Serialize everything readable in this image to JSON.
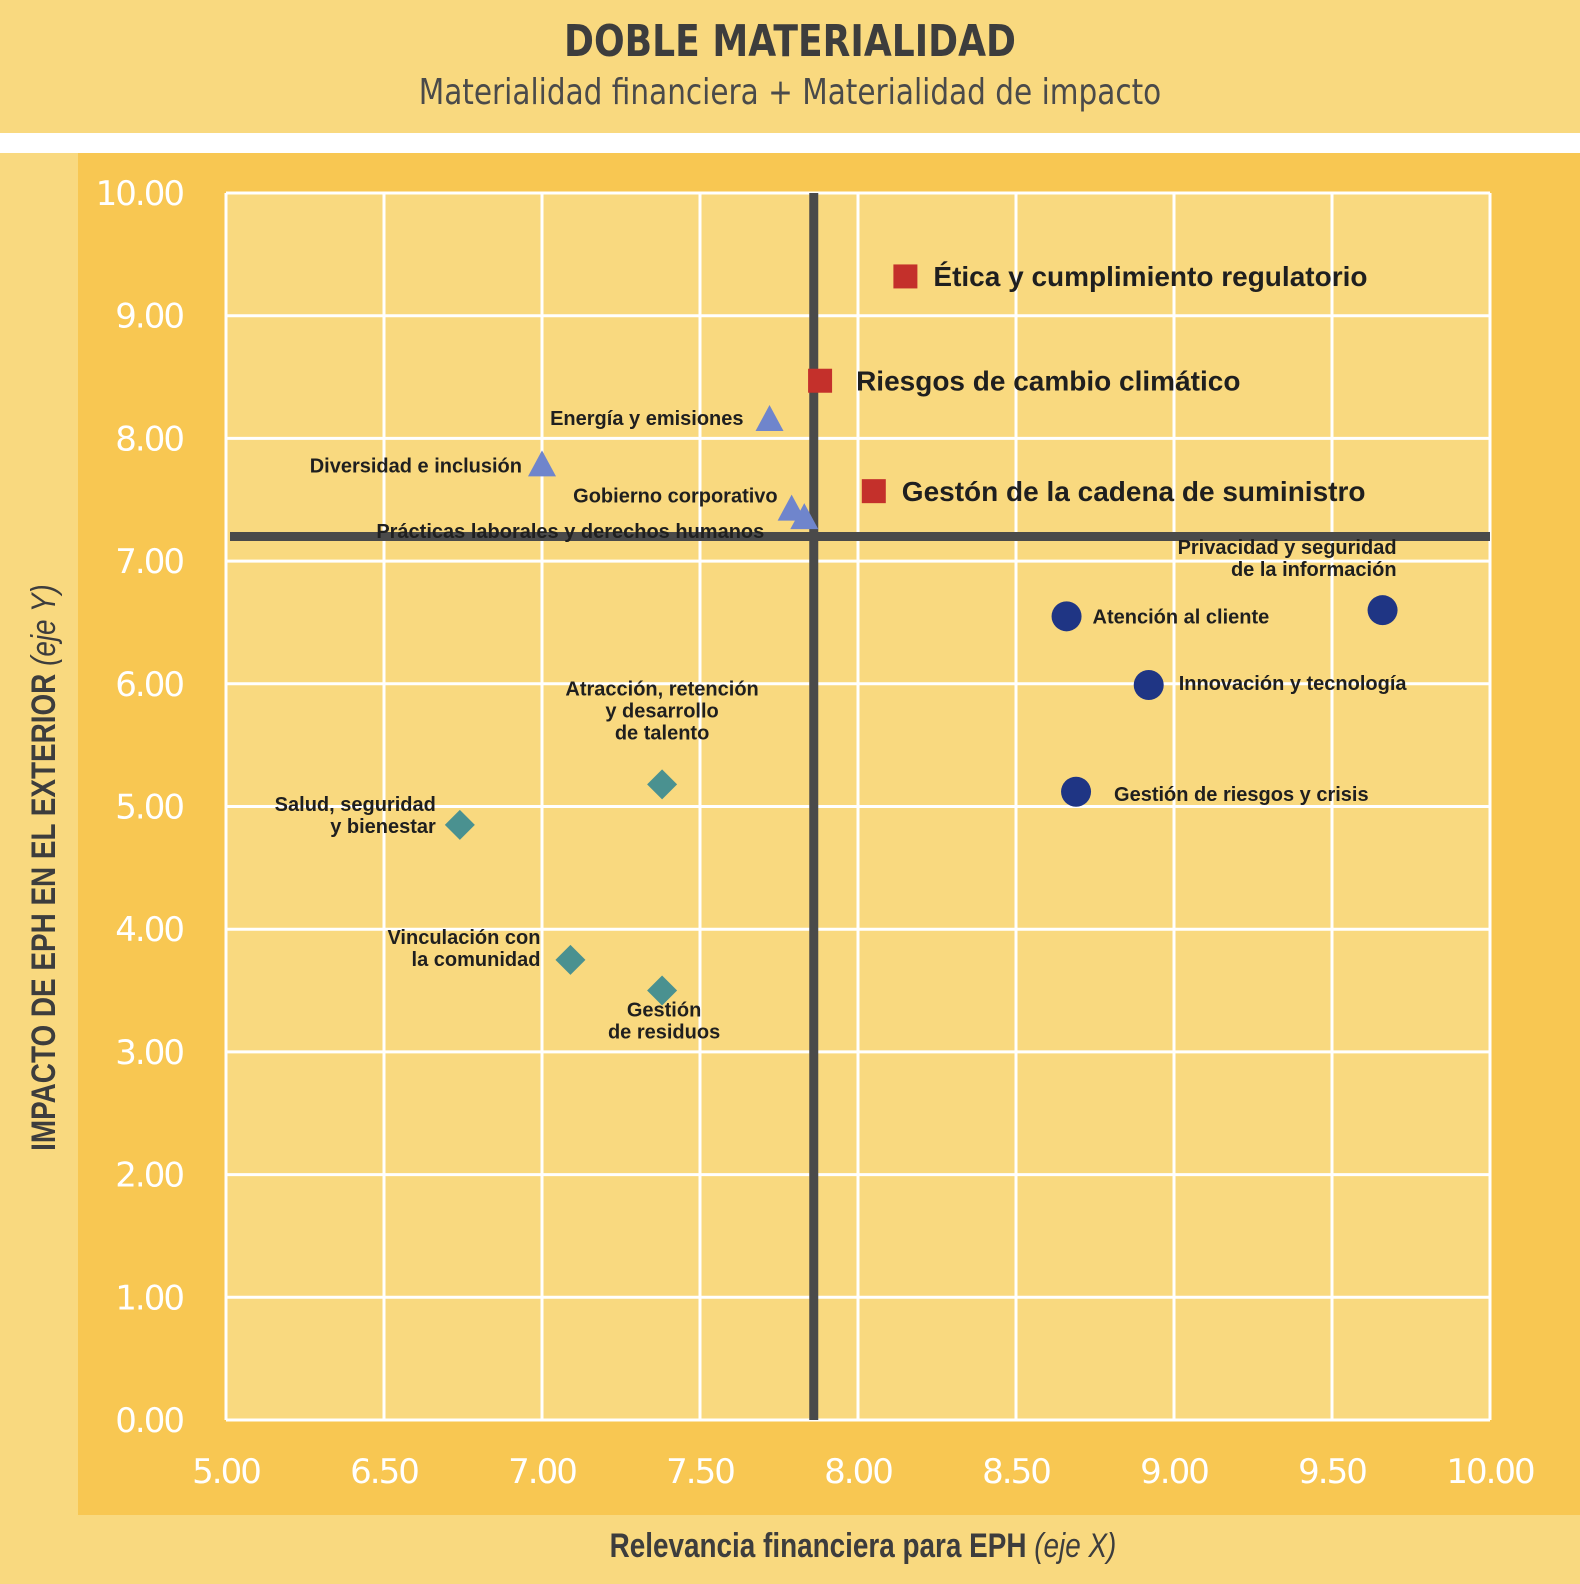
{
  "header": {
    "title": "DOBLE MATERIALIDAD",
    "subtitle": "Materialidad financiera + Materialidad de impacto"
  },
  "axes": {
    "ylabel_main": "IMPACTO DE EPH EN EL EXTERIOR",
    "ylabel_note": "(eje Y)",
    "xlabel_main": "Relevancia financiera para EPH",
    "xlabel_note": "(eje X)"
  },
  "chart_data": {
    "type": "scatter",
    "title": "DOBLE MATERIALIDAD",
    "subtitle": "Materialidad financiera + Materialidad de impacto",
    "xlabel": "Relevancia financiera para EPH (eje X)",
    "ylabel": "IMPACTO DE EPH EN EL EXTERIOR (eje Y)",
    "x_ticks": [
      "5.00",
      "6.50",
      "7.00",
      "7.50",
      "8.00",
      "8.50",
      "9.00",
      "9.50",
      "10.00"
    ],
    "y_ticks": [
      "0.00",
      "1.00",
      "2.00",
      "3.00",
      "4.00",
      "5.00",
      "6.00",
      "7.00",
      "8.00",
      "9.00",
      "10.00"
    ],
    "ylim": [
      0,
      10
    ],
    "grid": true,
    "quadrant_lines": {
      "x": 7.86,
      "y": 7.2
    },
    "colors": {
      "square": "#c4302b",
      "triangle": "#6f85cc",
      "diamond": "#4a9190",
      "circle": "#1f3584",
      "quadrant": "#4a4a4a",
      "grid": "#ffffff",
      "plot_bg": "#f9d97f"
    },
    "points": [
      {
        "label": "Ética y cumplimiento regulatorio",
        "x": 8.15,
        "y": 9.32,
        "shape": "square"
      },
      {
        "label": "Riesgos de cambio climático",
        "x": 7.88,
        "y": 8.47,
        "shape": "square"
      },
      {
        "label": "Gestón de la cadena de suministro",
        "x": 8.05,
        "y": 7.57,
        "shape": "square"
      },
      {
        "label": "Energía y emisiones",
        "x": 7.72,
        "y": 8.15,
        "shape": "triangle"
      },
      {
        "label": "Diversidad e inclusión",
        "x": 7.0,
        "y": 7.78,
        "shape": "triangle"
      },
      {
        "label": "Gobierno corporativo",
        "x": 7.79,
        "y": 7.42,
        "shape": "triangle"
      },
      {
        "label": "Prácticas laborales y derechos humanos",
        "x": 7.83,
        "y": 7.35,
        "shape": "triangle"
      },
      {
        "label": "Privacidad y seguridad de la información",
        "x": 9.66,
        "y": 6.6,
        "shape": "circle"
      },
      {
        "label": "Atención al cliente",
        "x": 8.66,
        "y": 6.55,
        "shape": "circle"
      },
      {
        "label": "Innovación y tecnología",
        "x": 8.92,
        "y": 5.99,
        "shape": "circle"
      },
      {
        "label": "Gestión de riesgos y crisis",
        "x": 8.69,
        "y": 5.12,
        "shape": "circle"
      },
      {
        "label": "Atracción, retención y desarrollo de talento",
        "x": 7.38,
        "y": 5.18,
        "shape": "diamond"
      },
      {
        "label": "Salud, seguridad y bienestar",
        "x": 6.74,
        "y": 4.85,
        "shape": "diamond"
      },
      {
        "label": "Vinculación con la comunidad",
        "x": 7.09,
        "y": 3.75,
        "shape": "diamond"
      },
      {
        "label": "Gestión de residuos",
        "x": 7.38,
        "y": 3.5,
        "shape": "diamond"
      }
    ],
    "point_labels": [
      {
        "lines": [
          "Ética y cumplimiento regulatorio"
        ],
        "big": true
      },
      {
        "lines": [
          "Riesgos de cambio climático"
        ],
        "big": true
      },
      {
        "lines": [
          "Gestón de la cadena de suministro"
        ],
        "big": true
      },
      {
        "lines": [
          "Energía y emisiones"
        ]
      },
      {
        "lines": [
          "Diversidad e inclusión"
        ]
      },
      {
        "lines": [
          "Gobierno corporativo"
        ]
      },
      {
        "lines": [
          "Prácticas laborales y derechos humanos"
        ]
      },
      {
        "lines": [
          "Privacidad y seguridad",
          "de la información"
        ]
      },
      {
        "lines": [
          "Atención al cliente"
        ]
      },
      {
        "lines": [
          "Innovación y tecnología"
        ]
      },
      {
        "lines": [
          "Gestión de riesgos y crisis"
        ]
      },
      {
        "lines": [
          "Atracción, retención",
          "y desarrollo",
          "de talento"
        ]
      },
      {
        "lines": [
          "Salud, seguridad",
          "y bienestar"
        ]
      },
      {
        "lines": [
          "Vinculación con",
          "la comunidad"
        ]
      },
      {
        "lines": [
          "Gestión",
          "de residuos"
        ]
      }
    ]
  }
}
